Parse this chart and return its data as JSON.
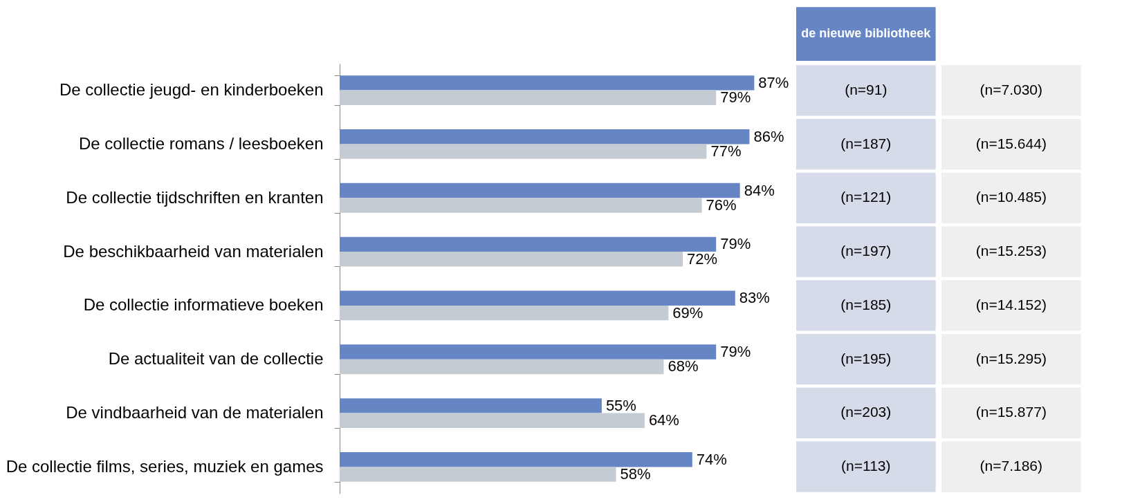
{
  "chart_data": {
    "type": "bar",
    "orientation": "horizontal",
    "categories": [
      "De collectie jeugd- en kinderboeken",
      "De collectie romans / leesboeken",
      "De collectie tijdschriften en kranten",
      "De beschikbaarheid van materialen",
      "De collectie informatieve boeken",
      "De actualiteit van de collectie",
      "De vindbaarheid van de materialen",
      "De collectie films, series, muziek en games"
    ],
    "series": [
      {
        "name": "de nieuwe bibliotheek",
        "color": "#6585c4",
        "values": [
          87,
          86,
          84,
          79,
          83,
          79,
          55,
          74
        ],
        "value_labels": [
          "87%",
          "86%",
          "84%",
          "79%",
          "83%",
          "79%",
          "55%",
          "74%"
        ]
      },
      {
        "color": "#c5cbd2",
        "values": [
          79,
          77,
          76,
          72,
          69,
          68,
          64,
          58
        ],
        "value_labels": [
          "79%",
          "77%",
          "76%",
          "72%",
          "69%",
          "68%",
          "64%",
          "58%"
        ]
      }
    ],
    "annotations": [
      "(n=91)",
      "(n=7.030)",
      "(n=187)",
      "(n=15.644)",
      "(n=121)",
      "(n=10.485)",
      "(n=197)",
      "(n=15.253)",
      "(n=185)",
      "(n=14.152)",
      "(n=195)",
      "(n=15.295)",
      "(n=203)",
      "(n=15.877)",
      "(n=113)",
      "(n=7.186)"
    ]
  }
}
